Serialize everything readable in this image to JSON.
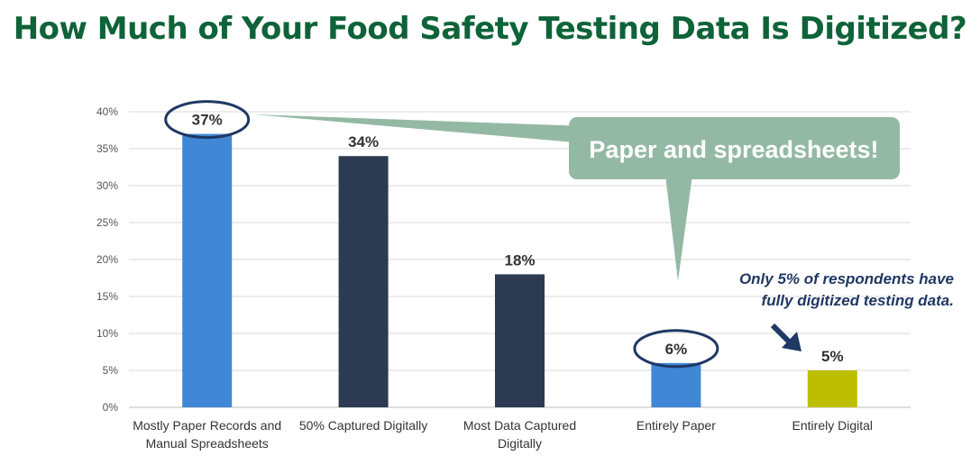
{
  "title": "How Much of Your Food Safety Testing Data Is Digitized?",
  "chart_data": {
    "type": "bar",
    "categories": [
      [
        "Mostly Paper Records and",
        "Manual Spreadsheets"
      ],
      [
        "50% Captured Digitally"
      ],
      [
        "Most Data Captured",
        "Digitally"
      ],
      [
        "Entirely Paper"
      ],
      [
        "Entirely Digital"
      ]
    ],
    "values": [
      37,
      34,
      18,
      6,
      5
    ],
    "data_labels": [
      "37%",
      "34%",
      "18%",
      "6%",
      "5%"
    ],
    "bar_colors": [
      "#4088d6",
      "#2c3b51",
      "#2c3b51",
      "#4088d6",
      "#bebe00"
    ],
    "ylim": [
      0,
      40
    ],
    "yticks": [
      0,
      5,
      10,
      15,
      20,
      25,
      30,
      35,
      40
    ],
    "ytick_labels": [
      "0%",
      "5%",
      "10%",
      "15%",
      "20%",
      "25%",
      "30%",
      "35%",
      "40%"
    ],
    "grid": true,
    "xlabel": "",
    "ylabel": "",
    "highlighted_bars": [
      0,
      3
    ],
    "annotations": {
      "callout": "Paper and spreadsheets!",
      "note_lines": [
        "Only 5% of respondents have",
        "fully digitized testing data."
      ]
    }
  },
  "colors": {
    "title": "#0e6338",
    "callout_fill": "#93b9a4",
    "highlight_ring": "#1f3864",
    "note_text": "#1f3864",
    "grid": "#d9d9d9"
  }
}
